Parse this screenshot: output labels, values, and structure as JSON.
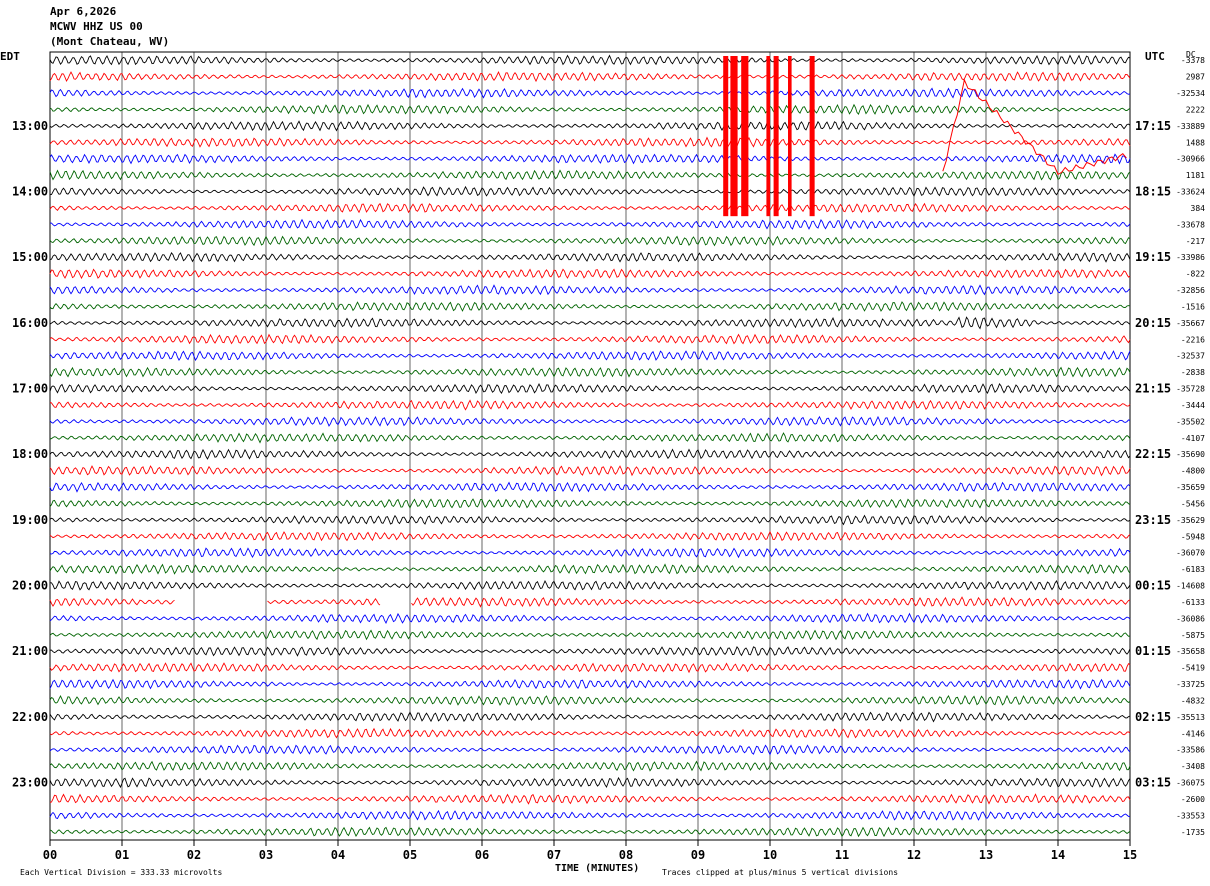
{
  "header": {
    "date": "Apr 6,2026",
    "station": "MCWV HHZ US 00",
    "location": "(Mont Chateau, WV)"
  },
  "left_zone": "EDT",
  "right_zone": "UTC",
  "dc_label": "DC",
  "footer": {
    "scale": "Each Vertical Division =  333.33 microvolts",
    "xlabel": "TIME (MINUTES)",
    "clip_note": "Traces clipped at plus/minus 5 vertical divisions"
  },
  "colors": {
    "trace_cycle": [
      "#000000",
      "#ff0000",
      "#0000ff",
      "#006400"
    ],
    "grid": "#000000"
  },
  "chart_data": {
    "type": "line",
    "title": "MCWV HHZ US 00",
    "xlabel": "TIME (MINUTES)",
    "xlim": [
      0,
      15
    ],
    "x_ticks": [
      "00",
      "01",
      "02",
      "03",
      "04",
      "05",
      "06",
      "07",
      "08",
      "09",
      "10",
      "11",
      "12",
      "13",
      "14",
      "15"
    ],
    "rows": 48,
    "left_hour_labels": [
      {
        "row": 4,
        "label": "13:00"
      },
      {
        "row": 8,
        "label": "14:00"
      },
      {
        "row": 12,
        "label": "15:00"
      },
      {
        "row": 16,
        "label": "16:00"
      },
      {
        "row": 20,
        "label": "17:00"
      },
      {
        "row": 24,
        "label": "18:00"
      },
      {
        "row": 28,
        "label": "19:00"
      },
      {
        "row": 32,
        "label": "20:00"
      },
      {
        "row": 36,
        "label": "21:00"
      },
      {
        "row": 40,
        "label": "22:00"
      },
      {
        "row": 44,
        "label": "23:00"
      }
    ],
    "right_hour_labels": [
      {
        "row": 4,
        "label": "17:15"
      },
      {
        "row": 8,
        "label": "18:15"
      },
      {
        "row": 12,
        "label": "19:15"
      },
      {
        "row": 16,
        "label": "20:15"
      },
      {
        "row": 20,
        "label": "21:15"
      },
      {
        "row": 24,
        "label": "22:15"
      },
      {
        "row": 28,
        "label": "23:15"
      },
      {
        "row": 32,
        "label": "00:15"
      },
      {
        "row": 36,
        "label": "01:15"
      },
      {
        "row": 40,
        "label": "02:15"
      },
      {
        "row": 44,
        "label": "03:15"
      }
    ],
    "dc_offsets": [
      "-3378",
      "2987",
      "-32534",
      "2222",
      "-33889",
      "1488",
      "-30966",
      "1181",
      "-33624",
      "384",
      "-33678",
      "-217",
      "-33986",
      "-822",
      "-32856",
      "-1516",
      "-35667",
      "-2216",
      "-32537",
      "-2838",
      "-35728",
      "-3444",
      "-35502",
      "-4107",
      "-35690",
      "-4800",
      "-35659",
      "-5456",
      "-35629",
      "-5948",
      "-36070",
      "-6183",
      "-14608",
      "-6133",
      "-36086",
      "-5875",
      "-35658",
      "-5419",
      "-33725",
      "-4832",
      "-35513",
      "-4146",
      "-33586",
      "-3408",
      "-36075",
      "-2600",
      "-33553",
      "-1735"
    ],
    "events": [
      {
        "row": 5,
        "x_start": 9.3,
        "x_end": 10.9,
        "color": "red",
        "note": "clipped bursts"
      },
      {
        "row": 5,
        "x_start": 12.4,
        "x_end": 15.0,
        "color": "red",
        "note": "DC drift arc"
      },
      {
        "row": 16,
        "x_start": 12.6,
        "x_end": 13.7,
        "color": "black",
        "note": "larger amplitude wiggles"
      }
    ],
    "gaps": [
      {
        "row": 33,
        "ranges": [
          [
            1.75,
            3.0
          ],
          [
            4.6,
            5.0
          ]
        ]
      }
    ]
  }
}
